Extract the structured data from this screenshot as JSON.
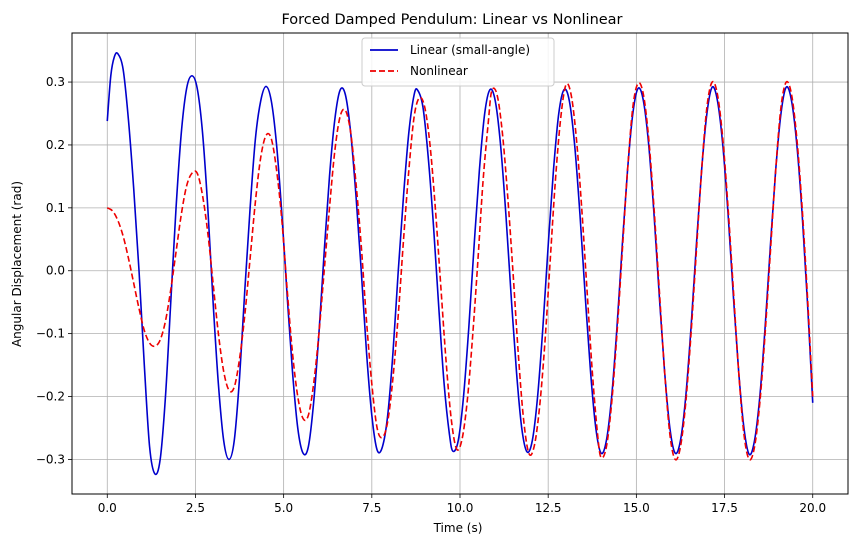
{
  "chart_data": {
    "type": "line",
    "title": "Forced Damped Pendulum: Linear vs Nonlinear",
    "xlabel": "Time (s)",
    "ylabel": "Angular Displacement (rad)",
    "xlim": [
      -1.0,
      21.0
    ],
    "ylim": [
      -0.355,
      0.378
    ],
    "xticks": [
      0.0,
      2.5,
      5.0,
      7.5,
      10.0,
      12.5,
      15.0,
      17.5,
      20.0
    ],
    "xtick_labels": [
      "0.0",
      "2.5",
      "5.0",
      "7.5",
      "10.0",
      "12.5",
      "15.0",
      "17.5",
      "20.0"
    ],
    "yticks": [
      -0.3,
      -0.2,
      -0.1,
      0.0,
      0.1,
      0.2,
      0.3
    ],
    "ytick_labels": [
      "−0.3",
      "−0.2",
      "−0.1",
      "0.0",
      "0.1",
      "0.2",
      "0.3"
    ],
    "grid": true,
    "legend_position": "top-center",
    "series": [
      {
        "name": "Linear (small-angle)",
        "color": "#0000cc",
        "style": "solid",
        "points": [
          [
            0.0,
            0.238
          ],
          [
            0.1,
            0.31
          ],
          [
            0.2,
            0.34
          ],
          [
            0.3,
            0.345
          ],
          [
            0.45,
            0.32
          ],
          [
            0.6,
            0.24
          ],
          [
            0.75,
            0.13
          ],
          [
            0.9,
            0.0
          ],
          [
            1.05,
            -0.15
          ],
          [
            1.2,
            -0.28
          ],
          [
            1.35,
            -0.323
          ],
          [
            1.5,
            -0.3
          ],
          [
            1.65,
            -0.2
          ],
          [
            1.8,
            -0.05
          ],
          [
            1.95,
            0.1
          ],
          [
            2.1,
            0.22
          ],
          [
            2.25,
            0.29
          ],
          [
            2.4,
            0.31
          ],
          [
            2.55,
            0.29
          ],
          [
            2.7,
            0.22
          ],
          [
            2.85,
            0.1
          ],
          [
            3.0,
            -0.05
          ],
          [
            3.15,
            -0.18
          ],
          [
            3.3,
            -0.27
          ],
          [
            3.45,
            -0.3
          ],
          [
            3.6,
            -0.27
          ],
          [
            3.75,
            -0.17
          ],
          [
            3.9,
            -0.03
          ],
          [
            4.05,
            0.1
          ],
          [
            4.2,
            0.21
          ],
          [
            4.35,
            0.27
          ],
          [
            4.5,
            0.293
          ],
          [
            4.65,
            0.27
          ],
          [
            4.8,
            0.2
          ],
          [
            4.95,
            0.09
          ],
          [
            5.1,
            -0.04
          ],
          [
            5.25,
            -0.16
          ],
          [
            5.4,
            -0.25
          ],
          [
            5.55,
            -0.29
          ],
          [
            5.7,
            -0.28
          ],
          [
            5.85,
            -0.21
          ],
          [
            6.0,
            -0.1
          ],
          [
            6.15,
            0.03
          ],
          [
            6.3,
            0.15
          ],
          [
            6.45,
            0.24
          ],
          [
            6.6,
            0.287
          ],
          [
            6.75,
            0.28
          ],
          [
            6.9,
            0.22
          ],
          [
            7.05,
            0.12
          ],
          [
            7.2,
            0.0
          ],
          [
            7.35,
            -0.13
          ],
          [
            7.5,
            -0.23
          ],
          [
            7.65,
            -0.285
          ],
          [
            7.8,
            -0.28
          ],
          [
            7.95,
            -0.23
          ],
          [
            8.1,
            -0.13
          ],
          [
            8.25,
            0.0
          ],
          [
            8.4,
            0.12
          ],
          [
            8.55,
            0.22
          ],
          [
            8.7,
            0.28
          ],
          [
            8.8,
            0.287
          ],
          [
            8.95,
            0.26
          ],
          [
            9.1,
            0.18
          ],
          [
            9.25,
            0.07
          ],
          [
            9.4,
            -0.06
          ],
          [
            9.55,
            -0.18
          ],
          [
            9.7,
            -0.26
          ],
          [
            9.8,
            -0.287
          ],
          [
            9.95,
            -0.27
          ],
          [
            10.1,
            -0.2
          ],
          [
            10.25,
            -0.09
          ],
          [
            10.4,
            0.04
          ],
          [
            10.55,
            0.16
          ],
          [
            10.7,
            0.25
          ],
          [
            10.85,
            0.288
          ],
          [
            11.0,
            0.27
          ],
          [
            11.15,
            0.2
          ],
          [
            11.3,
            0.09
          ],
          [
            11.45,
            -0.04
          ],
          [
            11.6,
            -0.16
          ],
          [
            11.75,
            -0.25
          ],
          [
            11.9,
            -0.288
          ],
          [
            12.05,
            -0.27
          ],
          [
            12.2,
            -0.2
          ],
          [
            12.35,
            -0.09
          ],
          [
            12.5,
            0.04
          ],
          [
            12.65,
            0.16
          ],
          [
            12.8,
            0.25
          ],
          [
            12.95,
            0.288
          ],
          [
            13.1,
            0.27
          ],
          [
            13.25,
            0.2
          ],
          [
            13.4,
            0.09
          ],
          [
            13.55,
            -0.04
          ],
          [
            13.7,
            -0.16
          ],
          [
            13.85,
            -0.25
          ],
          [
            14.0,
            -0.29
          ],
          [
            14.15,
            -0.27
          ],
          [
            14.3,
            -0.2
          ],
          [
            14.45,
            -0.09
          ],
          [
            14.6,
            0.04
          ],
          [
            14.75,
            0.16
          ],
          [
            14.9,
            0.25
          ],
          [
            15.05,
            0.29
          ],
          [
            15.2,
            0.27
          ],
          [
            15.35,
            0.2
          ],
          [
            15.5,
            0.09
          ],
          [
            15.65,
            -0.04
          ],
          [
            15.8,
            -0.16
          ],
          [
            15.95,
            -0.25
          ],
          [
            16.1,
            -0.29
          ],
          [
            16.25,
            -0.27
          ],
          [
            16.4,
            -0.2
          ],
          [
            16.55,
            -0.09
          ],
          [
            16.7,
            0.04
          ],
          [
            16.85,
            0.16
          ],
          [
            17.0,
            0.25
          ],
          [
            17.15,
            0.292
          ],
          [
            17.3,
            0.27
          ],
          [
            17.45,
            0.2
          ],
          [
            17.6,
            0.09
          ],
          [
            17.75,
            -0.04
          ],
          [
            17.9,
            -0.16
          ],
          [
            18.05,
            -0.25
          ],
          [
            18.2,
            -0.292
          ],
          [
            18.35,
            -0.27
          ],
          [
            18.5,
            -0.2
          ],
          [
            18.65,
            -0.09
          ],
          [
            18.8,
            0.04
          ],
          [
            18.95,
            0.16
          ],
          [
            19.1,
            0.25
          ],
          [
            19.25,
            0.292
          ],
          [
            19.4,
            0.27
          ],
          [
            19.55,
            0.2
          ],
          [
            19.7,
            0.09
          ],
          [
            19.85,
            -0.05
          ],
          [
            20.0,
            -0.21
          ]
        ]
      },
      {
        "name": "Nonlinear",
        "color": "#ee0000",
        "style": "dashed",
        "points": [
          [
            0.0,
            0.1
          ],
          [
            0.15,
            0.095
          ],
          [
            0.3,
            0.08
          ],
          [
            0.45,
            0.055
          ],
          [
            0.6,
            0.02
          ],
          [
            0.75,
            -0.02
          ],
          [
            0.9,
            -0.06
          ],
          [
            1.05,
            -0.095
          ],
          [
            1.2,
            -0.115
          ],
          [
            1.35,
            -0.12
          ],
          [
            1.5,
            -0.11
          ],
          [
            1.65,
            -0.08
          ],
          [
            1.8,
            -0.03
          ],
          [
            1.95,
            0.03
          ],
          [
            2.1,
            0.09
          ],
          [
            2.25,
            0.135
          ],
          [
            2.4,
            0.155
          ],
          [
            2.55,
            0.155
          ],
          [
            2.7,
            0.12
          ],
          [
            2.85,
            0.06
          ],
          [
            3.0,
            -0.02
          ],
          [
            3.15,
            -0.1
          ],
          [
            3.3,
            -0.16
          ],
          [
            3.45,
            -0.19
          ],
          [
            3.6,
            -0.185
          ],
          [
            3.75,
            -0.14
          ],
          [
            3.9,
            -0.07
          ],
          [
            4.05,
            0.02
          ],
          [
            4.2,
            0.11
          ],
          [
            4.35,
            0.18
          ],
          [
            4.5,
            0.215
          ],
          [
            4.65,
            0.21
          ],
          [
            4.8,
            0.16
          ],
          [
            4.95,
            0.08
          ],
          [
            5.1,
            -0.03
          ],
          [
            5.25,
            -0.13
          ],
          [
            5.4,
            -0.2
          ],
          [
            5.55,
            -0.235
          ],
          [
            5.7,
            -0.23
          ],
          [
            5.85,
            -0.18
          ],
          [
            6.0,
            -0.1
          ],
          [
            6.15,
            0.0
          ],
          [
            6.3,
            0.1
          ],
          [
            6.45,
            0.19
          ],
          [
            6.6,
            0.245
          ],
          [
            6.75,
            0.255
          ],
          [
            6.9,
            0.22
          ],
          [
            7.05,
            0.14
          ],
          [
            7.2,
            0.04
          ],
          [
            7.35,
            -0.08
          ],
          [
            7.5,
            -0.18
          ],
          [
            7.65,
            -0.25
          ],
          [
            7.8,
            -0.265
          ],
          [
            7.95,
            -0.24
          ],
          [
            8.1,
            -0.17
          ],
          [
            8.25,
            -0.07
          ],
          [
            8.4,
            0.05
          ],
          [
            8.55,
            0.16
          ],
          [
            8.7,
            0.245
          ],
          [
            8.85,
            0.275
          ],
          [
            9.0,
            0.26
          ],
          [
            9.15,
            0.2
          ],
          [
            9.3,
            0.1
          ],
          [
            9.45,
            -0.02
          ],
          [
            9.6,
            -0.14
          ],
          [
            9.75,
            -0.235
          ],
          [
            9.9,
            -0.283
          ],
          [
            10.05,
            -0.27
          ],
          [
            10.2,
            -0.21
          ],
          [
            10.35,
            -0.11
          ],
          [
            10.5,
            0.01
          ],
          [
            10.65,
            0.14
          ],
          [
            10.8,
            0.235
          ],
          [
            10.9,
            0.286
          ],
          [
            11.05,
            0.28
          ],
          [
            11.2,
            0.22
          ],
          [
            11.35,
            0.12
          ],
          [
            11.5,
            0.0
          ],
          [
            11.65,
            -0.13
          ],
          [
            11.8,
            -0.235
          ],
          [
            11.95,
            -0.29
          ],
          [
            12.1,
            -0.28
          ],
          [
            12.25,
            -0.22
          ],
          [
            12.4,
            -0.12
          ],
          [
            12.55,
            0.01
          ],
          [
            12.7,
            0.14
          ],
          [
            12.85,
            0.24
          ],
          [
            13.0,
            0.295
          ],
          [
            13.15,
            0.28
          ],
          [
            13.3,
            0.21
          ],
          [
            13.45,
            0.1
          ],
          [
            13.6,
            -0.03
          ],
          [
            13.75,
            -0.16
          ],
          [
            13.9,
            -0.26
          ],
          [
            14.0,
            -0.297
          ],
          [
            14.15,
            -0.28
          ],
          [
            14.3,
            -0.21
          ],
          [
            14.45,
            -0.1
          ],
          [
            14.6,
            0.03
          ],
          [
            14.75,
            0.16
          ],
          [
            14.9,
            0.26
          ],
          [
            15.05,
            0.298
          ],
          [
            15.2,
            0.28
          ],
          [
            15.35,
            0.21
          ],
          [
            15.5,
            0.1
          ],
          [
            15.65,
            -0.03
          ],
          [
            15.8,
            -0.16
          ],
          [
            15.95,
            -0.26
          ],
          [
            16.1,
            -0.3
          ],
          [
            16.25,
            -0.28
          ],
          [
            16.4,
            -0.21
          ],
          [
            16.55,
            -0.1
          ],
          [
            16.7,
            0.03
          ],
          [
            16.85,
            0.16
          ],
          [
            17.0,
            0.26
          ],
          [
            17.15,
            0.3
          ],
          [
            17.3,
            0.28
          ],
          [
            17.45,
            0.21
          ],
          [
            17.6,
            0.1
          ],
          [
            17.75,
            -0.03
          ],
          [
            17.9,
            -0.16
          ],
          [
            18.05,
            -0.26
          ],
          [
            18.2,
            -0.3
          ],
          [
            18.35,
            -0.28
          ],
          [
            18.5,
            -0.21
          ],
          [
            18.65,
            -0.1
          ],
          [
            18.8,
            0.03
          ],
          [
            18.95,
            0.16
          ],
          [
            19.1,
            0.26
          ],
          [
            19.25,
            0.3
          ],
          [
            19.4,
            0.28
          ],
          [
            19.55,
            0.21
          ],
          [
            19.7,
            0.1
          ],
          [
            19.85,
            -0.04
          ],
          [
            20.0,
            -0.2
          ]
        ]
      }
    ]
  }
}
